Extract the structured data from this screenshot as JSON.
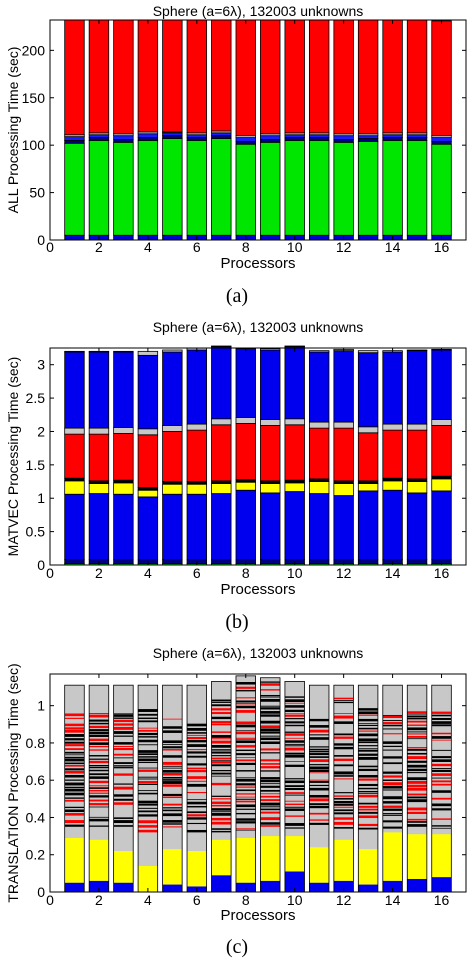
{
  "chart_data": [
    {
      "type": "bar",
      "title": "Sphere (a=6λ), 132003 unknowns",
      "xlabel": "Processors",
      "ylabel": "ALL Processing Time (sec)",
      "caption": "(a)",
      "xlim": [
        0,
        17
      ],
      "ylim": [
        0,
        232
      ],
      "xticks": [
        0,
        2,
        4,
        6,
        8,
        10,
        12,
        14,
        16
      ],
      "yticks": [
        0,
        50,
        100,
        150,
        200
      ],
      "categories": [
        1,
        2,
        3,
        4,
        5,
        6,
        7,
        8,
        9,
        10,
        11,
        12,
        13,
        14,
        15,
        16
      ],
      "grid": false,
      "stacked": true,
      "series": [
        {
          "color": "#0000cc",
          "values": [
            5,
            5,
            5,
            5,
            5,
            5,
            5,
            5,
            5,
            5,
            5,
            5,
            5,
            5,
            5,
            5
          ]
        },
        {
          "color": "#00e600",
          "values": [
            97,
            100,
            98,
            100,
            102,
            100,
            102,
            96,
            98,
            100,
            100,
            98,
            99,
            100,
            100,
            96
          ]
        },
        {
          "color": "#000088",
          "values": [
            3,
            3,
            3,
            3,
            3,
            3,
            3,
            3,
            3,
            3,
            3,
            3,
            3,
            3,
            3,
            3
          ]
        },
        {
          "color": "#1a1aff",
          "values": [
            4,
            3,
            4,
            4,
            3,
            3,
            3,
            4,
            4,
            3,
            3,
            4,
            3,
            3,
            3,
            4
          ]
        },
        {
          "color": "#c8c8c8",
          "values": [
            2,
            2,
            2,
            2,
            1,
            2,
            2,
            2,
            2,
            2,
            2,
            2,
            2,
            2,
            2,
            2
          ]
        },
        {
          "color": "#ff0000",
          "values": [
            121,
            119,
            120,
            118,
            118,
            119,
            117,
            122,
            120,
            119,
            119,
            120,
            120,
            119,
            119,
            121
          ]
        }
      ]
    },
    {
      "type": "bar",
      "title": "Sphere (a=6λ), 132003 unknowns",
      "xlabel": "Processors",
      "ylabel": "MATVEC Processing Time (sec)",
      "caption": "(b)",
      "xlim": [
        0,
        17
      ],
      "ylim": [
        0,
        3.25
      ],
      "xticks": [
        0,
        2,
        4,
        6,
        8,
        10,
        12,
        14,
        16
      ],
      "yticks": [
        0,
        0.5,
        1,
        1.5,
        2,
        2.5,
        3
      ],
      "categories": [
        1,
        2,
        3,
        4,
        5,
        6,
        7,
        8,
        9,
        10,
        11,
        12,
        13,
        14,
        15,
        16
      ],
      "grid": false,
      "stacked": true,
      "series": [
        {
          "color": "#00e600",
          "values": [
            0.02,
            0.02,
            0.02,
            0.02,
            0.02,
            0.02,
            0.02,
            0.02,
            0.02,
            0.02,
            0.02,
            0.02,
            0.02,
            0.02,
            0.02,
            0.02
          ]
        },
        {
          "color": "#000088",
          "values": [
            0.06,
            0.06,
            0.06,
            0.06,
            0.06,
            0.06,
            0.06,
            0.06,
            0.06,
            0.06,
            0.06,
            0.06,
            0.06,
            0.06,
            0.06,
            0.06
          ]
        },
        {
          "color": "#0000ee",
          "values": [
            0.98,
            0.99,
            0.98,
            0.94,
            0.98,
            0.98,
            0.99,
            1.04,
            1.0,
            1.02,
            0.99,
            0.96,
            1.03,
            1.04,
            1.0,
            1.03
          ]
        },
        {
          "color": "#ffff00",
          "values": [
            0.2,
            0.15,
            0.17,
            0.1,
            0.15,
            0.15,
            0.15,
            0.12,
            0.14,
            0.13,
            0.18,
            0.18,
            0.11,
            0.14,
            0.17,
            0.18
          ]
        },
        {
          "color": "#000000",
          "values": [
            0.04,
            0.04,
            0.04,
            0.04,
            0.04,
            0.04,
            0.04,
            0.04,
            0.04,
            0.04,
            0.04,
            0.04,
            0.04,
            0.04,
            0.04,
            0.04
          ]
        },
        {
          "color": "#ff0000",
          "values": [
            0.66,
            0.7,
            0.7,
            0.79,
            0.75,
            0.77,
            0.84,
            0.84,
            0.83,
            0.83,
            0.76,
            0.79,
            0.72,
            0.72,
            0.73,
            0.76
          ]
        },
        {
          "color": "#c8c8c8",
          "values": [
            0.09,
            0.09,
            0.09,
            0.09,
            0.09,
            0.09,
            0.09,
            0.09,
            0.09,
            0.09,
            0.09,
            0.09,
            0.09,
            0.09,
            0.09,
            0.09
          ]
        },
        {
          "color": "#0000ee",
          "values": [
            1.14,
            1.14,
            1.13,
            1.1,
            1.1,
            1.11,
            1.08,
            1.03,
            1.04,
            1.08,
            1.05,
            1.07,
            1.11,
            1.08,
            1.1,
            1.04
          ]
        },
        {
          "color": "#c8c8c8",
          "values": [
            0.01,
            0.01,
            0.01,
            0.06,
            0.03,
            0.03,
            0.01,
            0.01,
            0.02,
            0.01,
            0.02,
            0.02,
            0.03,
            0.02,
            0.01,
            0.01
          ]
        }
      ]
    },
    {
      "type": "bar",
      "title": "Sphere (a=6λ), 132003 unknowns",
      "xlabel": "Processors",
      "ylabel": "TRANSLATION Processing Time (sec)",
      "caption": "(c)",
      "xlim": [
        0,
        17
      ],
      "ylim": [
        0,
        1.17
      ],
      "xticks": [
        0,
        2,
        4,
        6,
        8,
        10,
        12,
        14,
        16
      ],
      "yticks": [
        0,
        0.2,
        0.4,
        0.6,
        0.8,
        1
      ],
      "categories": [
        1,
        2,
        3,
        4,
        5,
        6,
        7,
        8,
        9,
        10,
        11,
        12,
        13,
        14,
        15,
        16
      ],
      "grid": false,
      "stacked": true,
      "bar_totals": [
        1.11,
        1.11,
        1.11,
        1.11,
        1.11,
        1.11,
        1.13,
        1.16,
        1.15,
        1.13,
        1.11,
        1.11,
        1.11,
        1.11,
        1.11,
        1.11
      ],
      "blue_base": [
        0.05,
        0.06,
        0.05,
        0.0,
        0.04,
        0.03,
        0.09,
        0.05,
        0.06,
        0.11,
        0.05,
        0.06,
        0.04,
        0.06,
        0.07,
        0.08
      ],
      "yellow": [
        0.24,
        0.22,
        0.17,
        0.14,
        0.19,
        0.19,
        0.19,
        0.24,
        0.24,
        0.19,
        0.19,
        0.22,
        0.19,
        0.26,
        0.24,
        0.23
      ],
      "band_bottom": [
        0.35,
        0.35,
        0.35,
        0.32,
        0.32,
        0.32,
        0.32,
        0.33,
        0.35,
        0.34,
        0.36,
        0.34,
        0.32,
        0.34,
        0.35,
        0.34
      ],
      "band_top": [
        0.97,
        0.96,
        0.96,
        1.0,
        0.93,
        0.92,
        1.04,
        1.13,
        1.13,
        1.05,
        0.93,
        1.06,
        1.0,
        0.95,
        0.97,
        0.97
      ],
      "colors": {
        "blue": "#0000ee",
        "yellow": "#ffff00",
        "gray": "#c8c8c8",
        "red": "#ff0000",
        "black": "#000000"
      }
    }
  ]
}
